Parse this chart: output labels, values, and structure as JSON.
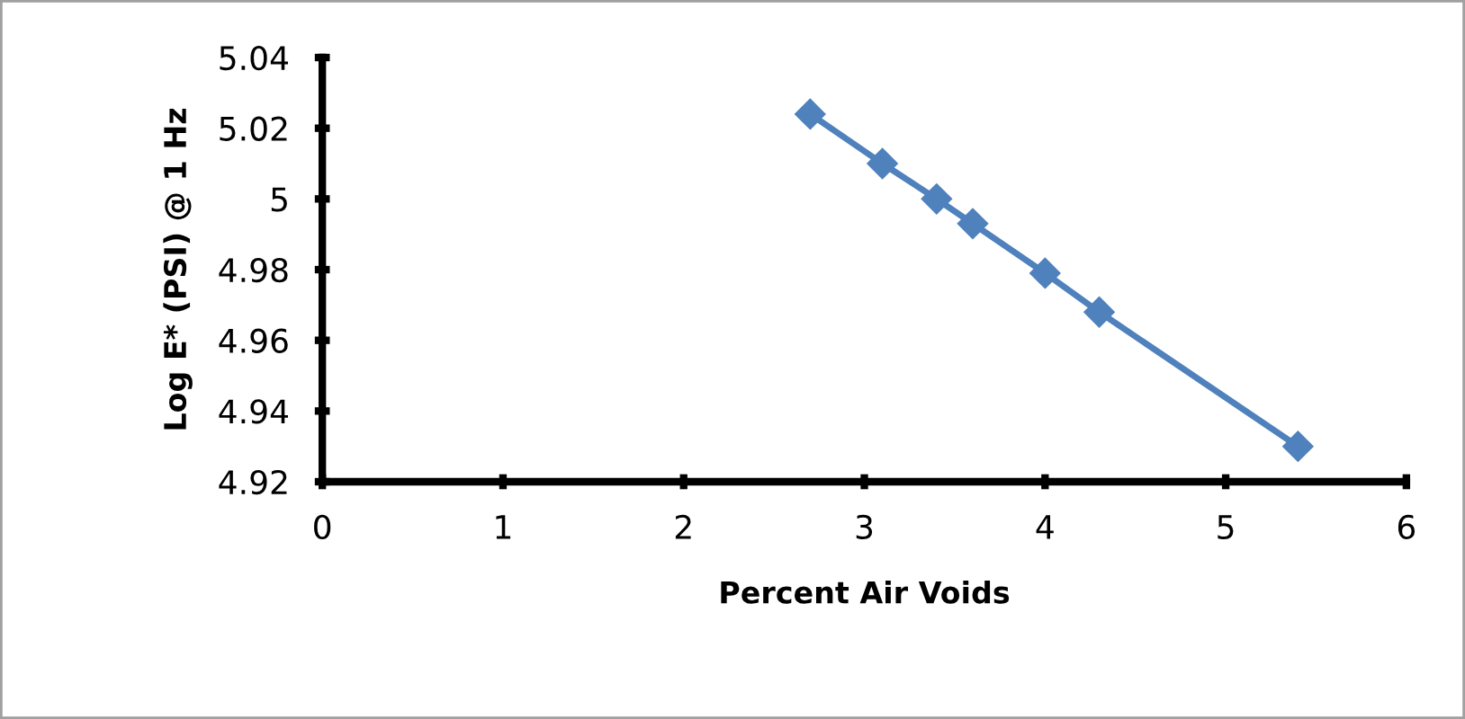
{
  "chart_data": {
    "type": "line",
    "xlabel": "Percent Air Voids",
    "ylabel": "Log E* (PSI) @ 1 Hz",
    "x": [
      2.7,
      3.1,
      3.4,
      3.6,
      4.0,
      4.3,
      5.4
    ],
    "series": [
      {
        "color": "#4f81bd",
        "values": [
          5.024,
          5.01,
          5.0,
          4.993,
          4.979,
          4.968,
          4.93
        ]
      }
    ],
    "xlim": [
      0,
      6
    ],
    "xticks": [
      0,
      1,
      2,
      3,
      4,
      5,
      6
    ],
    "ylim": [
      4.92,
      5.04
    ],
    "yticks": [
      {
        "value": 4.92,
        "label": "4.92"
      },
      {
        "value": 4.94,
        "label": "4.94"
      },
      {
        "value": 4.96,
        "label": "4.96"
      },
      {
        "value": 4.98,
        "label": "4.98"
      },
      {
        "value": 5,
        "label": "5"
      },
      {
        "value": 5.02,
        "label": "5.02"
      },
      {
        "value": 5.04,
        "label": "5.04"
      }
    ],
    "marker": "diamond",
    "line_style": "solid",
    "grid": false,
    "legend": false
  }
}
